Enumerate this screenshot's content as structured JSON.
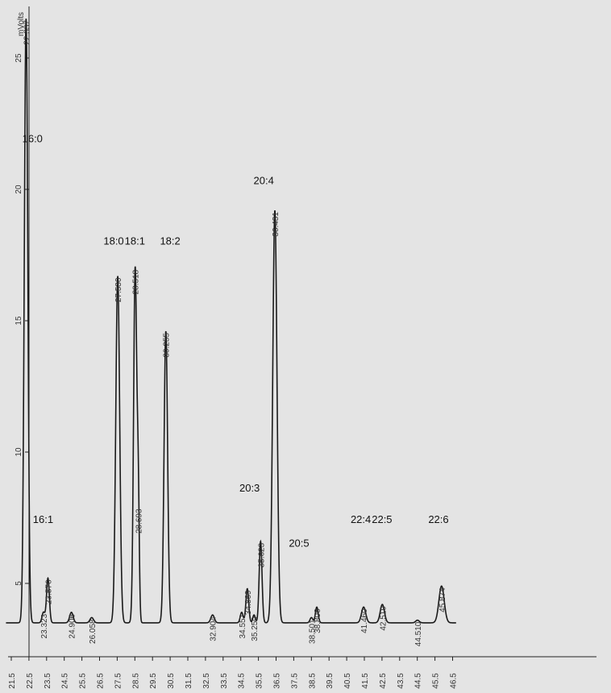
{
  "chart_data": {
    "type": "line",
    "title": "",
    "xlabel": "",
    "ylabel": "mVolts",
    "xlim": [
      21.2,
      47.5
    ],
    "ylim": [
      1.0,
      26.5
    ],
    "baseline": 3.5,
    "x_ticks": [
      "21.5",
      "22.5",
      "23.5",
      "24.5",
      "25.5",
      "26.5",
      "27.5",
      "28.5",
      "29.5",
      "30.5",
      "31.5",
      "32.5",
      "33.5",
      "34.5",
      "35.5",
      "36.5",
      "37.5",
      "38.5",
      "39.5",
      "40.5",
      "41.5",
      "42.5",
      "43.5",
      "44.5",
      "45.5",
      "46.5"
    ],
    "y_ticks": [
      "5",
      "10",
      "15",
      "20",
      "25"
    ],
    "peaks": [
      {
        "rt": 22.337,
        "label": "22.337",
        "height": 26.5,
        "width": 0.1
      },
      {
        "rt": 23.323,
        "label": "23.323",
        "height": 3.9,
        "width": 0.08
      },
      {
        "rt": 23.576,
        "label": "23.576",
        "height": 5.2,
        "width": 0.08
      },
      {
        "rt": 24.906,
        "label": "24.906",
        "height": 3.9,
        "width": 0.1
      },
      {
        "rt": 26.058,
        "label": "26.058",
        "height": 3.7,
        "width": 0.1
      },
      {
        "rt": 27.53,
        "label": "27.530",
        "height": 16.7,
        "width": 0.11
      },
      {
        "rt": 28.518,
        "label": "28.518",
        "height": 17.0,
        "width": 0.09
      },
      {
        "rt": 28.693,
        "label": "28.693",
        "height": 7.9,
        "width": 0.06
      },
      {
        "rt": 30.255,
        "label": "30.255",
        "height": 14.6,
        "width": 0.1
      },
      {
        "rt": 32.904,
        "label": "32.904",
        "height": 3.8,
        "width": 0.1
      },
      {
        "rt": 34.551,
        "label": "34.551",
        "height": 3.9,
        "width": 0.08
      },
      {
        "rt": 34.869,
        "label": "34.869",
        "height": 4.8,
        "width": 0.08
      },
      {
        "rt": 35.25,
        "label": "35.250",
        "height": 3.8,
        "width": 0.07
      },
      {
        "rt": 35.623,
        "label": "35.623",
        "height": 6.6,
        "width": 0.08
      },
      {
        "rt": 36.431,
        "label": "36.431",
        "height": 19.2,
        "width": 0.12
      },
      {
        "rt": 38.501,
        "label": "38.501",
        "height": 3.7,
        "width": 0.08
      },
      {
        "rt": 38.806,
        "label": "38.806",
        "height": 4.1,
        "width": 0.08
      },
      {
        "rt": 41.46,
        "label": "41.460",
        "height": 4.1,
        "width": 0.12
      },
      {
        "rt": 42.519,
        "label": "42.519",
        "height": 4.2,
        "width": 0.12
      },
      {
        "rt": 44.51,
        "label": "44.510",
        "height": 3.6,
        "width": 0.1
      },
      {
        "rt": 45.874,
        "label": "45.874",
        "height": 4.9,
        "width": 0.15
      }
    ],
    "annotations": [
      {
        "text": "16:0",
        "x": 22.7,
        "y": 21.8
      },
      {
        "text": "16:1",
        "x": 23.3,
        "y": 7.3
      },
      {
        "text": "18:0",
        "x": 27.3,
        "y": 17.9
      },
      {
        "text": "18:1",
        "x": 28.5,
        "y": 17.9
      },
      {
        "text": "18:2",
        "x": 30.5,
        "y": 17.9
      },
      {
        "text": "20:3",
        "x": 35.0,
        "y": 8.5
      },
      {
        "text": "20:4",
        "x": 35.8,
        "y": 20.2
      },
      {
        "text": "20:5",
        "x": 37.8,
        "y": 6.4
      },
      {
        "text": "22:4",
        "x": 41.3,
        "y": 7.3
      },
      {
        "text": "22:5",
        "x": 42.5,
        "y": 7.3
      },
      {
        "text": "22:6",
        "x": 45.7,
        "y": 7.3
      }
    ]
  }
}
